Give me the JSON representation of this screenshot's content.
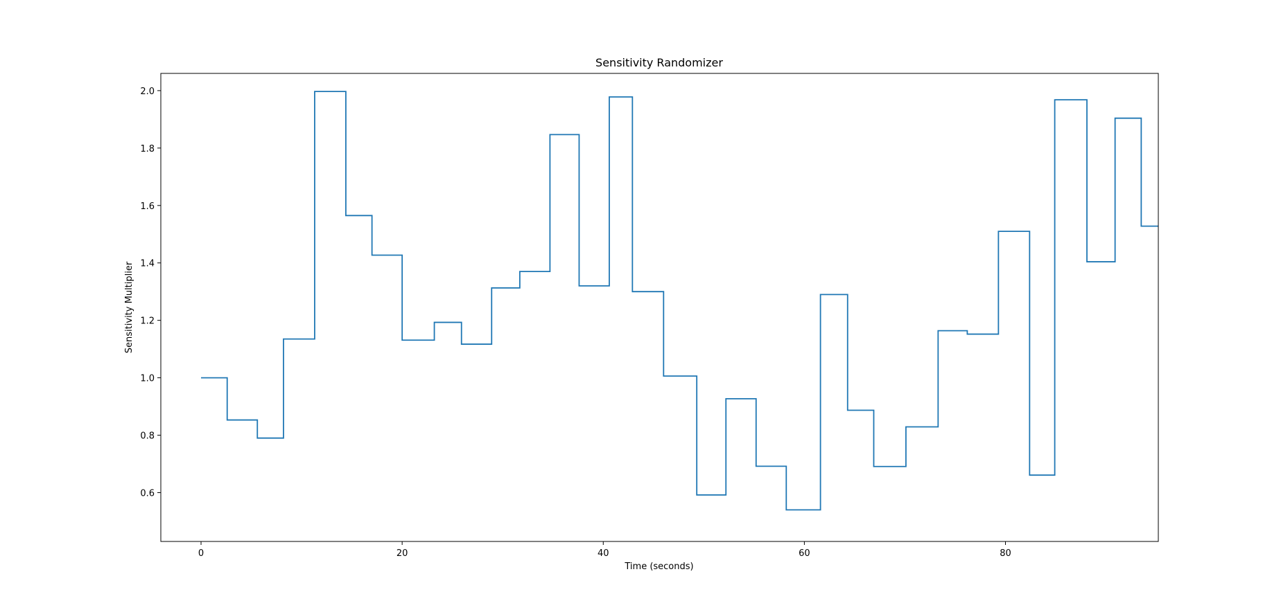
{
  "chart_data": {
    "type": "line",
    "drawstyle": "steps-post",
    "title": "Sensitivity Randomizer",
    "xlabel": "Time (seconds)",
    "ylabel": "Sensitivity Multiplier",
    "xlim": [
      -4,
      95.2
    ],
    "ylim": [
      0.43,
      2.06
    ],
    "xticks": [
      0,
      20,
      40,
      60,
      80
    ],
    "xtick_labels": [
      "0",
      "20",
      "40",
      "60",
      "80"
    ],
    "yticks": [
      0.6,
      0.8,
      1.0,
      1.2,
      1.4,
      1.6,
      1.8,
      2.0
    ],
    "ytick_labels": [
      "0.6",
      "0.8",
      "1.0",
      "1.2",
      "1.4",
      "1.6",
      "1.8",
      "2.0"
    ],
    "grid": false,
    "series": [
      {
        "color": "#1f77b4",
        "x": [
          0,
          2.6,
          5.6,
          8.2,
          11.3,
          14.4,
          17.0,
          20.0,
          23.2,
          25.9,
          28.9,
          31.7,
          34.7,
          37.6,
          40.6,
          42.9,
          46.0,
          49.3,
          52.2,
          55.2,
          58.2,
          61.6,
          64.3,
          66.9,
          70.1,
          73.3,
          76.2,
          79.3,
          82.4,
          84.9,
          88.1,
          90.9,
          93.5
        ],
        "y": [
          1.0,
          0.853,
          0.79,
          1.135,
          1.997,
          1.565,
          1.427,
          1.131,
          1.193,
          1.117,
          1.313,
          1.37,
          1.847,
          1.32,
          1.978,
          1.3,
          1.006,
          0.592,
          0.927,
          0.692,
          0.54,
          1.29,
          0.887,
          0.691,
          0.829,
          1.164,
          1.152,
          1.51,
          0.661,
          1.968,
          1.404,
          1.904,
          1.528
        ],
        "x_end": 95.2
      }
    ]
  }
}
